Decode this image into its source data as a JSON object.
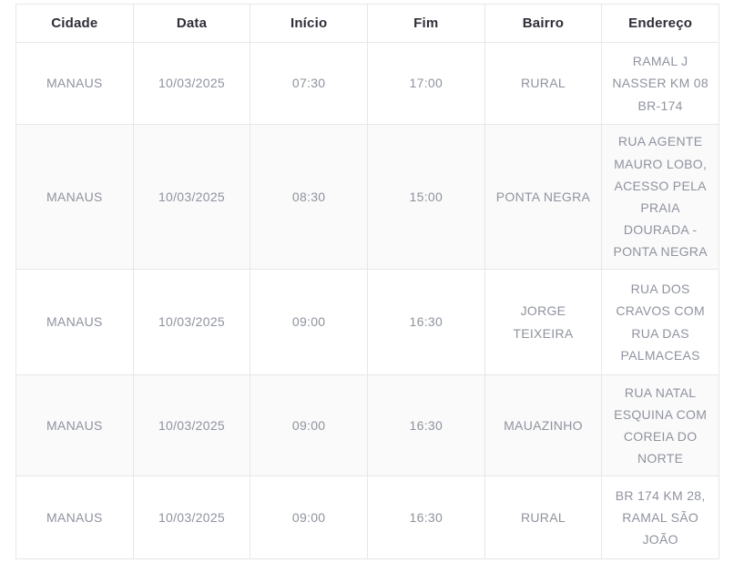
{
  "colors": {
    "header_text": "#2e2e38",
    "body_text": "#8f939e",
    "stripe_background": "#fafafa",
    "border": "#e7e7e7"
  },
  "table": {
    "columns": [
      {
        "key": "cidade",
        "label": "Cidade"
      },
      {
        "key": "data",
        "label": "Data"
      },
      {
        "key": "inicio",
        "label": "Início"
      },
      {
        "key": "fim",
        "label": "Fim"
      },
      {
        "key": "bairro",
        "label": "Bairro"
      },
      {
        "key": "endereco",
        "label": "Endereço"
      }
    ],
    "rows": [
      {
        "cidade": "MANAUS",
        "data": "10/03/2025",
        "inicio": "07:30",
        "fim": "17:00",
        "bairro": "RURAL",
        "endereco": "RAMAL J\nNASSER KM 08\nBR-174"
      },
      {
        "cidade": "MANAUS",
        "data": "10/03/2025",
        "inicio": "08:30",
        "fim": "15:00",
        "bairro": "PONTA NEGRA",
        "endereco": "RUA AGENTE\nMAURO LOBO,\nACESSO PELA\nPRAIA\nDOURADA -\nPONTA NEGRA"
      },
      {
        "cidade": "MANAUS",
        "data": "10/03/2025",
        "inicio": "09:00",
        "fim": "16:30",
        "bairro": "JORGE TEIXEIRA",
        "endereco": "RUA DOS\nCRAVOS COM\nRUA DAS\nPALMACEAS"
      },
      {
        "cidade": "MANAUS",
        "data": "10/03/2025",
        "inicio": "09:00",
        "fim": "16:30",
        "bairro": "MAUAZINHO",
        "endereco": "RUA NATAL\nESQUINA COM\nCOREIA DO\nNORTE"
      },
      {
        "cidade": "MANAUS",
        "data": "10/03/2025",
        "inicio": "09:00",
        "fim": "16:30",
        "bairro": "RURAL",
        "endereco": "BR 174 KM 28,\nRAMAL SÃO\nJOÃO"
      }
    ]
  }
}
